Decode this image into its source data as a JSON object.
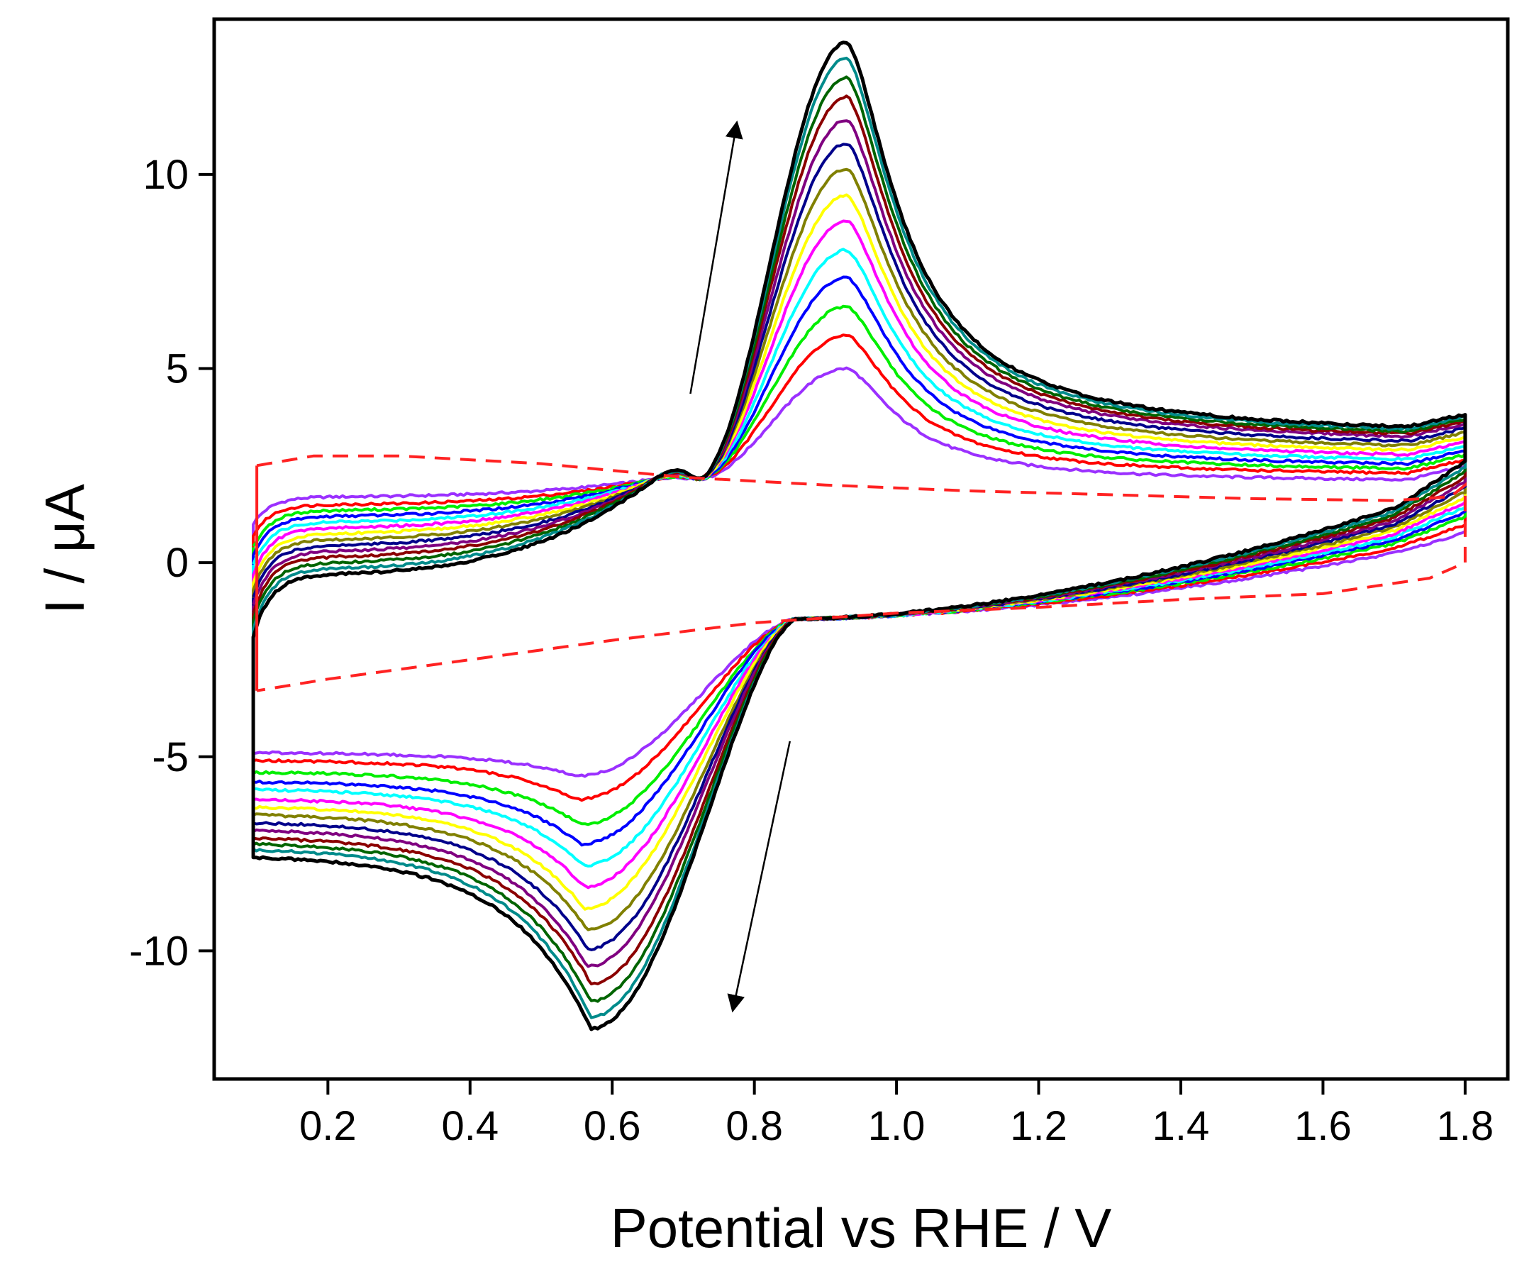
{
  "chart_data": {
    "type": "line",
    "title": "",
    "xlabel": "Potential vs RHE / V",
    "ylabel": "I / μA",
    "xlim": [
      0.04,
      1.86
    ],
    "ylim": [
      -13.3,
      14
    ],
    "xticks": [
      0.2,
      0.4,
      0.6,
      0.8,
      1.0,
      1.2,
      1.4,
      1.6,
      1.8
    ],
    "xtick_labels": [
      "0.2",
      "0.4",
      "0.6",
      "0.8",
      "1.0",
      "1.2",
      "1.4",
      "1.6",
      "1.8"
    ],
    "yticks": [
      -10,
      -5,
      0,
      5,
      10
    ],
    "ytick_labels": [
      "-10",
      "-5",
      "0",
      "5",
      "10"
    ],
    "grid": false,
    "legend": "none",
    "annotations": [
      {
        "type": "arrow",
        "direction": "up",
        "meaning": "increasing peak current with successive scans (anodic)"
      },
      {
        "type": "arrow",
        "direction": "down",
        "meaning": "increasing peak current with successive scans (cathodic)"
      }
    ],
    "background_scan": {
      "name": "blank",
      "color": "#ff2222",
      "style": "dashed",
      "forward": [
        [
          0.1,
          2.5
        ],
        [
          0.18,
          2.75
        ],
        [
          0.3,
          2.75
        ],
        [
          0.5,
          2.55
        ],
        [
          0.7,
          2.2
        ],
        [
          0.9,
          2.0
        ],
        [
          1.1,
          1.85
        ],
        [
          1.3,
          1.75
        ],
        [
          1.5,
          1.65
        ],
        [
          1.7,
          1.6
        ],
        [
          1.78,
          1.7
        ],
        [
          1.8,
          2.0
        ]
      ],
      "reverse": [
        [
          1.8,
          0.0
        ],
        [
          1.75,
          -0.4
        ],
        [
          1.6,
          -0.8
        ],
        [
          1.4,
          -0.95
        ],
        [
          1.2,
          -1.15
        ],
        [
          1.0,
          -1.3
        ],
        [
          0.8,
          -1.55
        ],
        [
          0.6,
          -2.0
        ],
        [
          0.4,
          -2.5
        ],
        [
          0.2,
          -3.0
        ],
        [
          0.1,
          -3.3
        ]
      ]
    },
    "series": [
      {
        "name": "scan 1",
        "color": "#9b30ff",
        "anodic_peak": [
          0.93,
          5.0
        ],
        "cathodic_peak": [
          0.55,
          -5.5
        ],
        "start_i": 1.0,
        "plateau_low": 1.7,
        "plateau_high": 2.05,
        "cathodic_start": -4.9,
        "high_end": 0.6
      },
      {
        "name": "scan 2",
        "color": "#ff0000",
        "anodic_peak": [
          0.93,
          5.85
        ],
        "cathodic_peak": [
          0.55,
          -6.1
        ],
        "start_i": 0.7,
        "plateau_low": 1.5,
        "plateau_high": 2.2,
        "cathodic_start": -5.1,
        "high_end": 0.75
      },
      {
        "name": "scan 3",
        "color": "#00ee00",
        "anodic_peak": [
          0.93,
          6.6
        ],
        "cathodic_peak": [
          0.555,
          -6.75
        ],
        "start_i": 0.4,
        "plateau_low": 1.35,
        "plateau_high": 2.3,
        "cathodic_start": -5.4,
        "high_end": 0.9
      },
      {
        "name": "scan 4",
        "color": "#0000ff",
        "anodic_peak": [
          0.93,
          7.35
        ],
        "cathodic_peak": [
          0.555,
          -7.25
        ],
        "start_i": 0.2,
        "plateau_low": 1.2,
        "plateau_high": 2.4,
        "cathodic_start": -5.65,
        "high_end": 1.0
      },
      {
        "name": "scan 5",
        "color": "#00ffff",
        "anodic_peak": [
          0.93,
          8.05
        ],
        "cathodic_peak": [
          0.56,
          -7.8
        ],
        "start_i": -0.05,
        "plateau_low": 1.05,
        "plateau_high": 2.5,
        "cathodic_start": -5.85,
        "high_end": 1.1
      },
      {
        "name": "scan 6",
        "color": "#ff00ff",
        "anodic_peak": [
          0.93,
          8.8
        ],
        "cathodic_peak": [
          0.56,
          -8.35
        ],
        "start_i": -0.3,
        "plateau_low": 0.9,
        "plateau_high": 2.6,
        "cathodic_start": -6.1,
        "high_end": 1.2
      },
      {
        "name": "scan 7",
        "color": "#ffff00",
        "anodic_peak": [
          0.93,
          9.45
        ],
        "cathodic_peak": [
          0.56,
          -8.9
        ],
        "start_i": -0.5,
        "plateau_low": 0.75,
        "plateau_high": 2.7,
        "cathodic_start": -6.3,
        "high_end": 1.3
      },
      {
        "name": "scan 8",
        "color": "#808000",
        "anodic_peak": [
          0.93,
          10.15
        ],
        "cathodic_peak": [
          0.565,
          -9.45
        ],
        "start_i": -0.7,
        "plateau_low": 0.6,
        "plateau_high": 2.8,
        "cathodic_start": -6.5,
        "high_end": 1.4
      },
      {
        "name": "scan 9",
        "color": "#00008b",
        "anodic_peak": [
          0.93,
          10.8
        ],
        "cathodic_peak": [
          0.565,
          -9.95
        ],
        "start_i": -0.9,
        "plateau_low": 0.45,
        "plateau_high": 2.9,
        "cathodic_start": -6.7,
        "high_end": 1.5
      },
      {
        "name": "scan 10",
        "color": "#800080",
        "anodic_peak": [
          0.93,
          11.4
        ],
        "cathodic_peak": [
          0.565,
          -10.4
        ],
        "start_i": -1.1,
        "plateau_low": 0.3,
        "plateau_high": 3.0,
        "cathodic_start": -6.9,
        "high_end": 1.6
      },
      {
        "name": "scan 11",
        "color": "#8b0000",
        "anodic_peak": [
          0.93,
          12.0
        ],
        "cathodic_peak": [
          0.57,
          -10.85
        ],
        "start_i": -1.3,
        "plateau_low": 0.15,
        "plateau_high": 3.05,
        "cathodic_start": -7.1,
        "high_end": 1.7
      },
      {
        "name": "scan 12",
        "color": "#006400",
        "anodic_peak": [
          0.93,
          12.5
        ],
        "cathodic_peak": [
          0.57,
          -11.3
        ],
        "start_i": -1.5,
        "plateau_low": 0.0,
        "plateau_high": 3.1,
        "cathodic_start": -7.25,
        "high_end": 1.8
      },
      {
        "name": "scan 13",
        "color": "#008b8b",
        "anodic_peak": [
          0.93,
          13.0
        ],
        "cathodic_peak": [
          0.57,
          -11.7
        ],
        "start_i": -1.7,
        "plateau_low": -0.15,
        "plateau_high": 3.15,
        "cathodic_start": -7.4,
        "high_end": 1.9
      },
      {
        "name": "scan 14",
        "color": "#000000",
        "anodic_peak": [
          0.93,
          13.4
        ],
        "cathodic_peak": [
          0.57,
          -12.0
        ],
        "start_i": -1.9,
        "plateau_low": -0.3,
        "plateau_high": 3.2,
        "cathodic_start": -7.6,
        "high_end": 2.0
      }
    ],
    "crossover_points": [
      [
        0.72,
        2.15
      ],
      [
        0.86,
        -1.45
      ]
    ]
  }
}
